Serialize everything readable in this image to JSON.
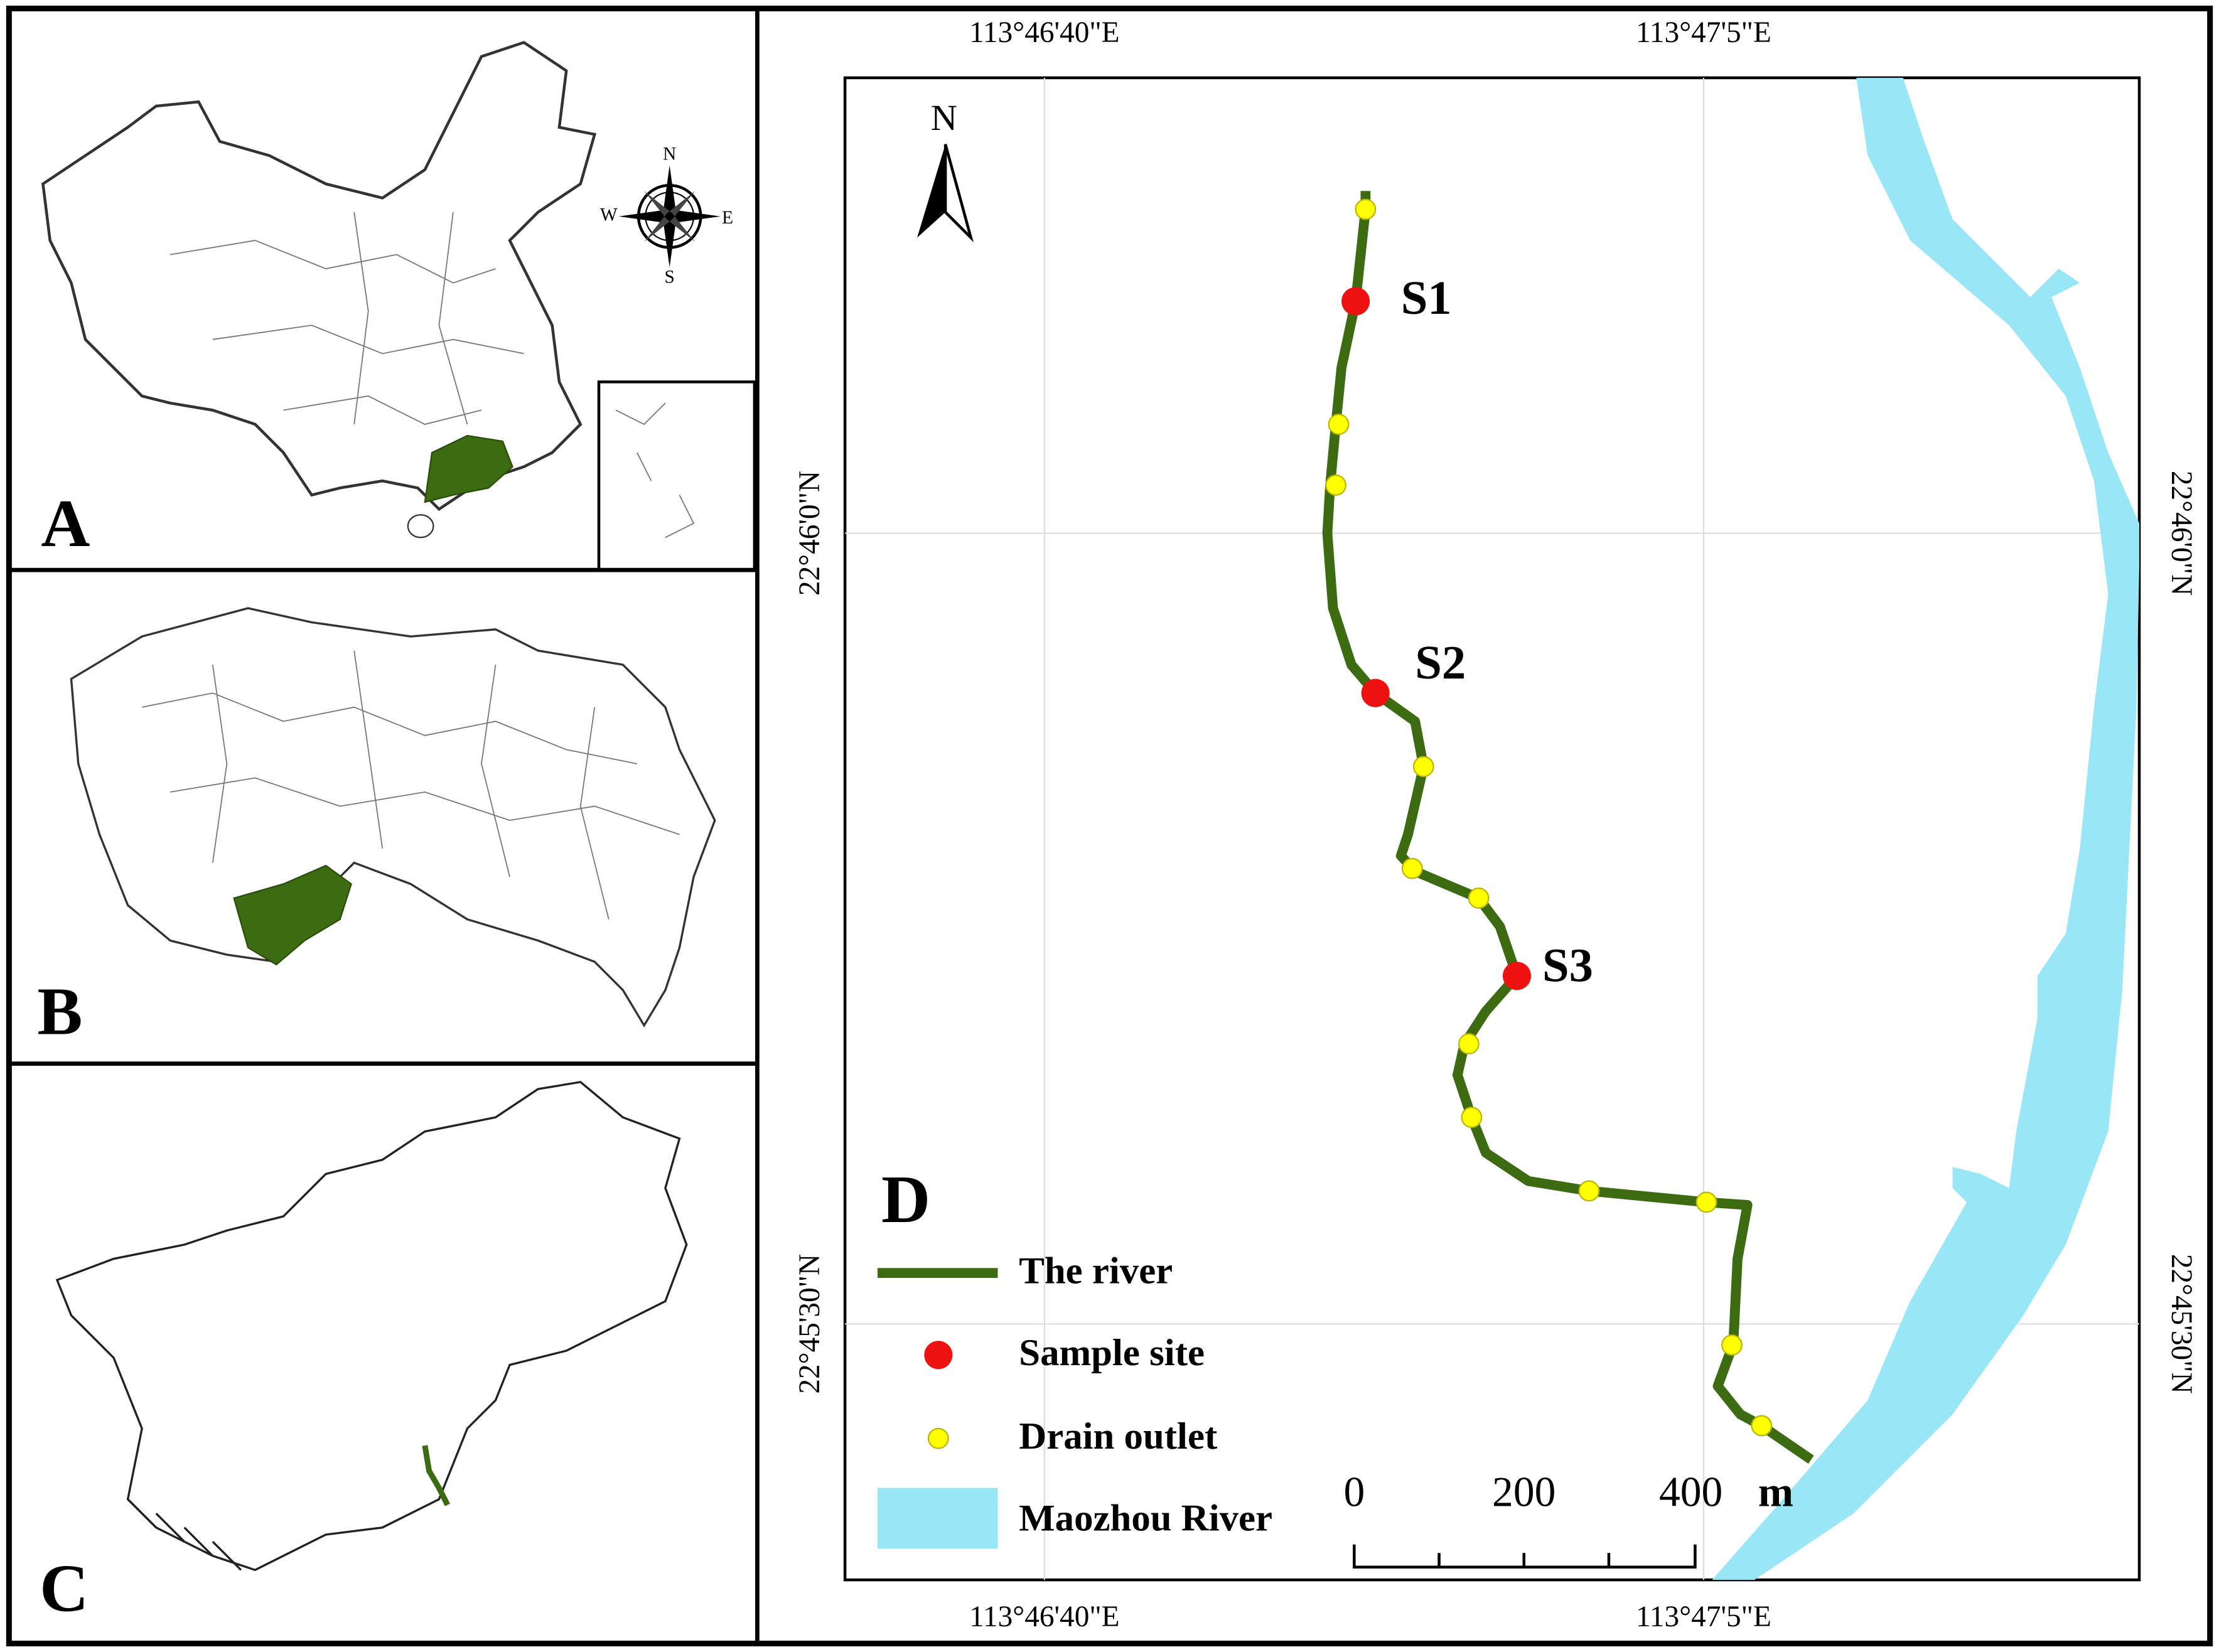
{
  "panels": {
    "a": {
      "label": "A",
      "compass": {
        "n": "N",
        "w": "W",
        "e": "E",
        "s": "S"
      }
    },
    "b": {
      "label": "B"
    },
    "c": {
      "label": "C"
    },
    "d": {
      "label": "D",
      "north": "N",
      "top_lon": [
        "113°46'40\"E",
        "113°47'5\"E"
      ],
      "bottom_lon": [
        "113°46'40\"E",
        "113°47'5\"E"
      ],
      "left_lat": [
        "22°46'0\"N",
        "22°45'30\"N"
      ],
      "right_lat": [
        "22°46'0\"N",
        "22°45'30\"N"
      ],
      "sites": [
        "S1",
        "S2",
        "S3"
      ],
      "legend": [
        "The river",
        "Sample site",
        "Drain outlet",
        "Maozhou River"
      ],
      "scale": {
        "ticks": [
          "0",
          "200",
          "400"
        ],
        "unit": "m"
      }
    }
  }
}
